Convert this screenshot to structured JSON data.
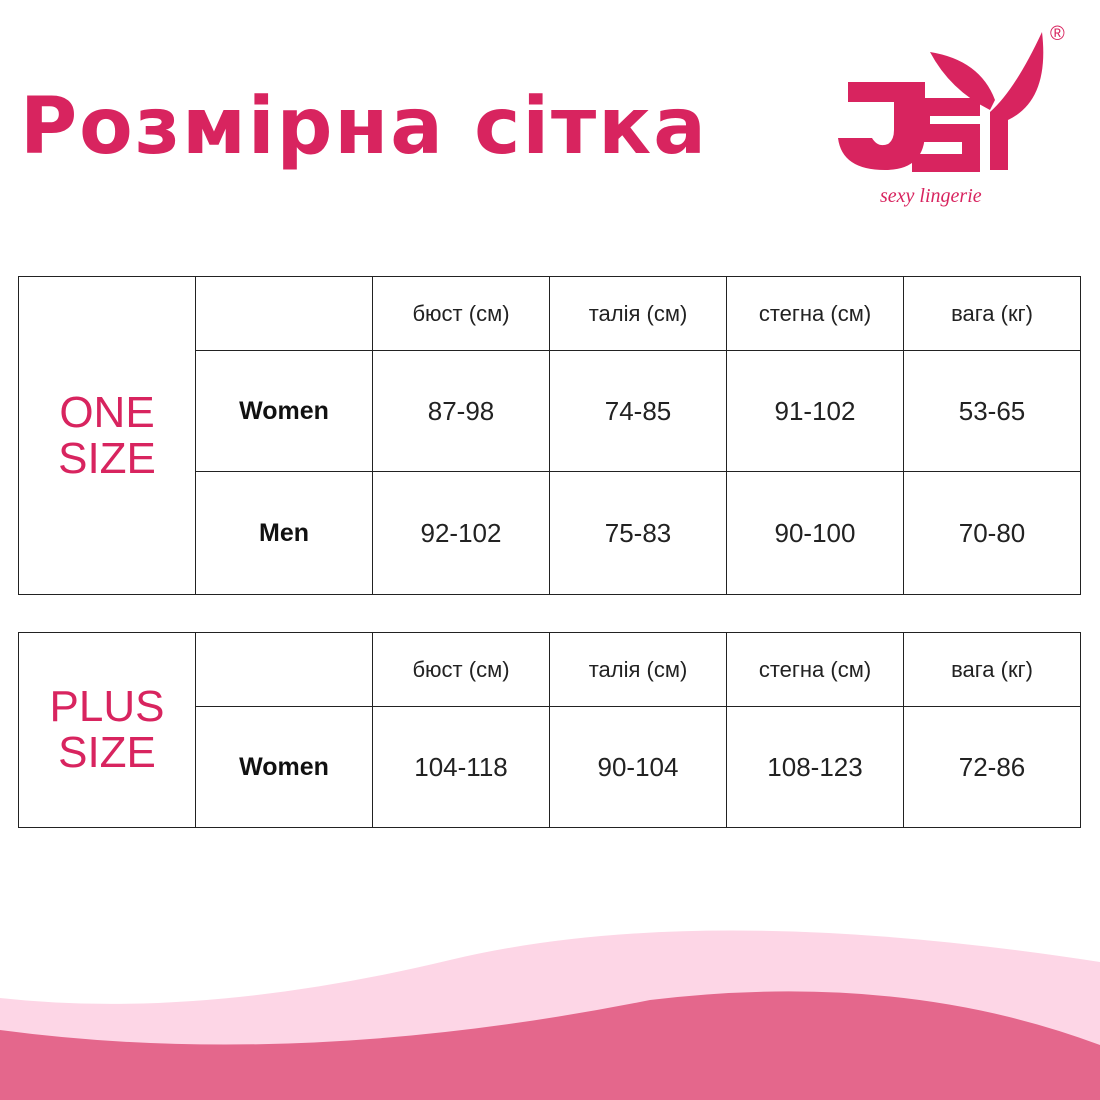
{
  "title": "Розмірна сітка",
  "logo": {
    "text": "JSY",
    "tagline": "sexy lingerie",
    "registered": "®"
  },
  "colors": {
    "accent": "#d8245f",
    "wave_light": "#fdd6e6",
    "wave_dark": "#e4678c"
  },
  "headers": [
    "бюст (см)",
    "талія (см)",
    "стегна (см)",
    "вага (кг)"
  ],
  "one_size": {
    "label_line1": "ONE",
    "label_line2": "SIZE",
    "rows": [
      {
        "label": "Women",
        "values": [
          "87-98",
          "74-85",
          "91-102",
          "53-65"
        ]
      },
      {
        "label": "Men",
        "values": [
          "92-102",
          "75-83",
          "90-100",
          "70-80"
        ]
      }
    ]
  },
  "plus_size": {
    "label_line1": "PLUS",
    "label_line2": "SIZE",
    "rows": [
      {
        "label": "Women",
        "values": [
          "104-118",
          "90-104",
          "108-123",
          "72-86"
        ]
      }
    ]
  }
}
